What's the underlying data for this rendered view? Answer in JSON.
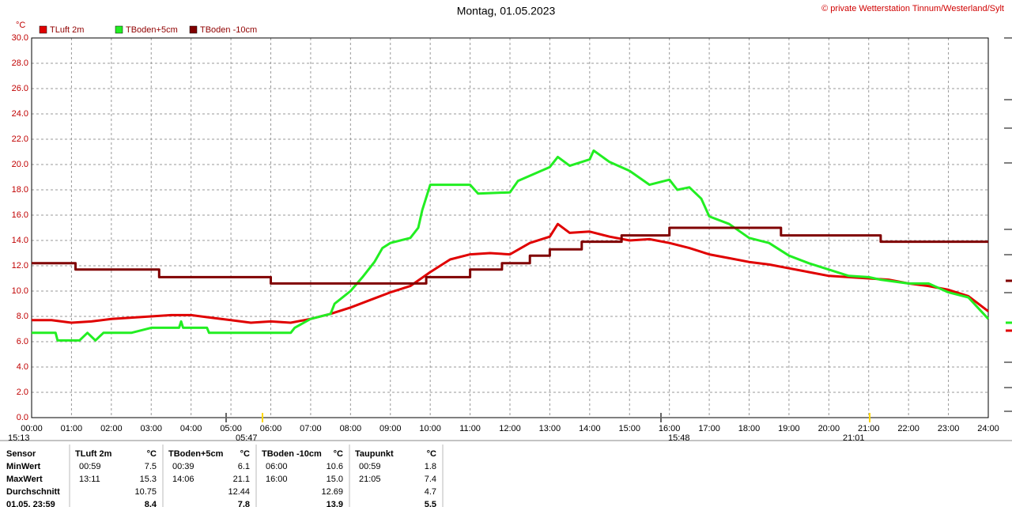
{
  "chart_data": {
    "type": "line",
    "title": "Montag, 01.05.2023",
    "subtitle": "© private Wetterstation Tinnum/Westerland/Sylt",
    "y_label": "°C",
    "xlim": [
      0,
      24
    ],
    "xticks": [
      {
        "value": 0,
        "label": "00:00"
      },
      {
        "value": 1,
        "label": "01:00"
      },
      {
        "value": 2,
        "label": "02:00"
      },
      {
        "value": 3,
        "label": "03:00"
      },
      {
        "value": 4,
        "label": "04:00"
      },
      {
        "value": 5,
        "label": "05:00"
      },
      {
        "value": 6,
        "label": "06:00"
      },
      {
        "value": 7,
        "label": "07:00"
      },
      {
        "value": 8,
        "label": "08:00"
      },
      {
        "value": 9,
        "label": "09:00"
      },
      {
        "value": 10,
        "label": "10:00"
      },
      {
        "value": 11,
        "label": "11:00"
      },
      {
        "value": 12,
        "label": "12:00"
      },
      {
        "value": 13,
        "label": "13:00"
      },
      {
        "value": 14,
        "label": "14:00"
      },
      {
        "value": 15,
        "label": "15:00"
      },
      {
        "value": 16,
        "label": "16:00"
      },
      {
        "value": 17,
        "label": "17:00"
      },
      {
        "value": 18,
        "label": "18:00"
      },
      {
        "value": 19,
        "label": "19:00"
      },
      {
        "value": 20,
        "label": "20:00"
      },
      {
        "value": 21,
        "label": "21:00"
      },
      {
        "value": 22,
        "label": "22:00"
      },
      {
        "value": 23,
        "label": "23:00"
      },
      {
        "value": 24,
        "label": "24:00"
      }
    ],
    "ylim": [
      0,
      30
    ],
    "yticks": [
      {
        "value": 0,
        "label": "0.0"
      },
      {
        "value": 2,
        "label": "2.0"
      },
      {
        "value": 4,
        "label": "4.0"
      },
      {
        "value": 6,
        "label": "6.0"
      },
      {
        "value": 8,
        "label": "8.0"
      },
      {
        "value": 10,
        "label": "10.0"
      },
      {
        "value": 12,
        "label": "12.0"
      },
      {
        "value": 14,
        "label": "14.0"
      },
      {
        "value": 16,
        "label": "16.0"
      },
      {
        "value": 18,
        "label": "18.0"
      },
      {
        "value": 20,
        "label": "20.0"
      },
      {
        "value": 22,
        "label": "22.0"
      },
      {
        "value": 24,
        "label": "24.0"
      },
      {
        "value": 26,
        "label": "26.0"
      },
      {
        "value": 28,
        "label": "28.0"
      },
      {
        "value": 30,
        "label": "30.0"
      }
    ],
    "grid": true,
    "series": [
      {
        "name": "TLuft 2m",
        "color": "#e00000",
        "x": [
          0,
          0.5,
          1,
          1.5,
          2,
          2.5,
          3,
          3.5,
          4,
          4.5,
          5,
          5.5,
          6,
          6.5,
          7,
          7.5,
          8,
          8.5,
          9,
          9.5,
          10,
          10.5,
          11,
          11.5,
          12,
          12.5,
          13,
          13.2,
          13.5,
          14,
          14.5,
          15,
          15.5,
          16,
          16.5,
          17,
          17.5,
          18,
          18.5,
          19,
          19.5,
          20,
          20.5,
          21,
          21.5,
          22,
          22.5,
          23,
          23.5,
          24
        ],
        "values": [
          7.7,
          7.7,
          7.5,
          7.6,
          7.8,
          7.9,
          8.0,
          8.1,
          8.1,
          7.9,
          7.7,
          7.5,
          7.6,
          7.5,
          7.8,
          8.2,
          8.7,
          9.3,
          9.9,
          10.4,
          11.5,
          12.5,
          12.9,
          13.0,
          12.9,
          13.8,
          14.3,
          15.3,
          14.6,
          14.7,
          14.3,
          14.0,
          14.1,
          13.8,
          13.4,
          12.9,
          12.6,
          12.3,
          12.1,
          11.8,
          11.5,
          11.2,
          11.1,
          11.0,
          10.9,
          10.6,
          10.4,
          10.1,
          9.6,
          8.4
        ]
      },
      {
        "name": "TBoden+5cm",
        "color": "#22ee22",
        "x": [
          0,
          0.6,
          0.65,
          1.2,
          1.4,
          1.6,
          1.8,
          2.5,
          3,
          3.7,
          3.75,
          3.8,
          4.4,
          4.45,
          6.5,
          6.6,
          7,
          7.5,
          7.6,
          8,
          8.3,
          8.6,
          8.8,
          9,
          9.5,
          9.7,
          9.8,
          10,
          10.5,
          11,
          11.2,
          12,
          12.2,
          13,
          13.2,
          13.5,
          14,
          14.1,
          14.5,
          15,
          15.5,
          16,
          16.2,
          16.5,
          16.8,
          17,
          17.5,
          18,
          18.5,
          19,
          19.5,
          20,
          20.5,
          21,
          21.3,
          22,
          22.5,
          23,
          23.5,
          24
        ],
        "values": [
          6.7,
          6.7,
          6.1,
          6.1,
          6.7,
          6.1,
          6.7,
          6.7,
          7.1,
          7.1,
          7.6,
          7.1,
          7.1,
          6.7,
          6.7,
          7.1,
          7.8,
          8.2,
          9.0,
          10.0,
          11.1,
          12.3,
          13.4,
          13.8,
          14.2,
          15.0,
          16.4,
          18.4,
          18.4,
          18.4,
          17.7,
          17.8,
          18.7,
          19.8,
          20.6,
          19.9,
          20.4,
          21.1,
          20.2,
          19.5,
          18.4,
          18.8,
          18.0,
          18.2,
          17.3,
          15.9,
          15.3,
          14.2,
          13.8,
          12.8,
          12.2,
          11.7,
          11.2,
          11.1,
          10.9,
          10.6,
          10.6,
          9.9,
          9.5,
          7.8
        ]
      },
      {
        "name": "TBoden -10cm",
        "color": "#800000",
        "x": [
          0,
          1.1,
          1.1,
          3.2,
          3.2,
          6,
          6,
          9.9,
          9.9,
          11,
          11,
          11.8,
          11.8,
          12.5,
          12.5,
          13,
          13,
          13.8,
          13.8,
          14.8,
          14.8,
          16,
          16,
          18.8,
          18.8,
          21.3,
          21.3,
          24
        ],
        "values": [
          12.2,
          12.2,
          11.7,
          11.7,
          11.1,
          11.1,
          10.6,
          10.6,
          11.1,
          11.1,
          11.7,
          11.7,
          12.2,
          12.2,
          12.8,
          12.8,
          13.3,
          13.3,
          13.9,
          13.9,
          14.4,
          14.4,
          15.0,
          15.0,
          14.4,
          14.4,
          13.9,
          13.9
        ]
      }
    ]
  },
  "astro": [
    "15:13",
    "05:47",
    "15:48",
    "21:01"
  ],
  "table": {
    "header": [
      "Sensor",
      "TLuft 2m",
      "°C",
      "TBoden+5cm",
      "°C",
      "TBoden -10cm",
      "°C",
      "Taupunkt",
      "°C"
    ],
    "rows": [
      [
        "MinWert",
        "00:59",
        "7.5",
        "00:39",
        "6.1",
        "06:00",
        "10.6",
        "00:59",
        "1.8"
      ],
      [
        "MaxWert",
        "13:11",
        "15.3",
        "14:06",
        "21.1",
        "16:00",
        "15.0",
        "21:05",
        "7.4"
      ],
      [
        "Durchschnitt",
        null,
        "10.75",
        null,
        "12.44",
        null,
        "12.69",
        null,
        "4.7"
      ],
      [
        "01.05. 23:59",
        null,
        "8.4",
        null,
        "7.8",
        null,
        "13.9",
        null,
        "5.5"
      ]
    ]
  }
}
